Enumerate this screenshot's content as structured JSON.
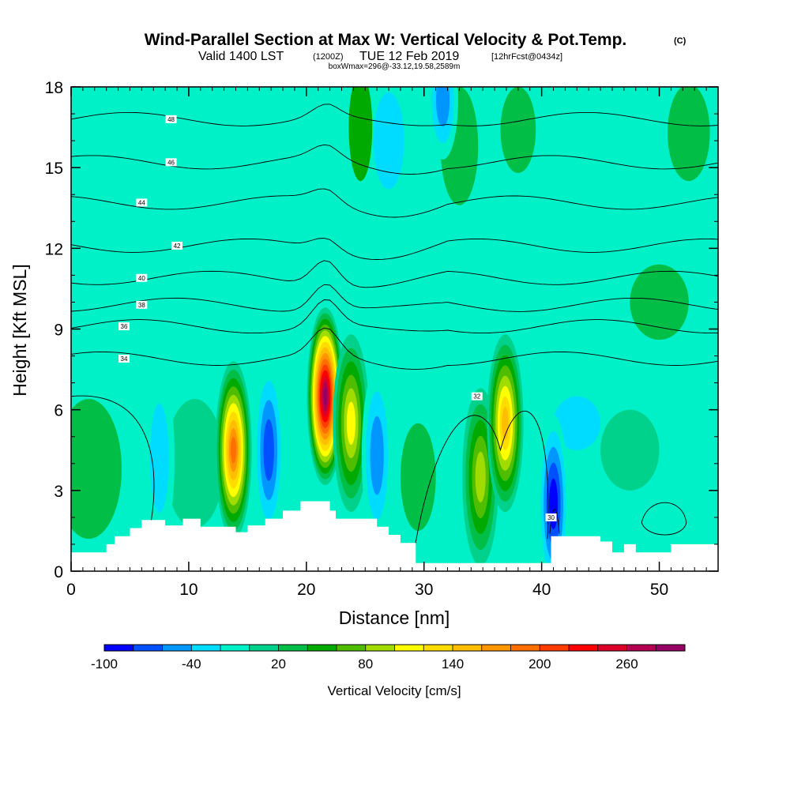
{
  "chart_data": {
    "type": "heatmap",
    "title": "Wind-Parallel Section at Max W: Vertical Velocity & Pot.Temp.",
    "title_mark": "(C)",
    "subtitle": {
      "valid": "Valid 1400 LST",
      "zulu": "(1200Z)",
      "date": "TUE 12 Feb 2019",
      "forecast": "[12hrFcst@0434z]"
    },
    "box_info": "boxWmax=296@-33.12,19.58,2589m",
    "xlabel": "Distance [nm]",
    "ylabel": "Height [Kft MSL]",
    "xlim": [
      0,
      55
    ],
    "ylim": [
      0,
      18
    ],
    "xticks": [
      0,
      10,
      20,
      30,
      40,
      50
    ],
    "xtick_labels": [
      "0",
      "10",
      "20",
      "30",
      "40",
      "50"
    ],
    "yticks": [
      0,
      3,
      6,
      9,
      12,
      15,
      18
    ],
    "ytick_labels": [
      "0",
      "3",
      "6",
      "9",
      "12",
      "15",
      "18"
    ],
    "colorbar": {
      "label": "Vertical Velocity [cm/s]",
      "levels": [
        -100,
        -80,
        -60,
        -40,
        -20,
        0,
        20,
        40,
        60,
        80,
        100,
        120,
        140,
        160,
        180,
        200,
        220,
        240,
        260,
        280,
        300
      ],
      "tick_values": [
        -100,
        -40,
        20,
        80,
        140,
        200,
        260
      ],
      "tick_labels": [
        "-100",
        "-40",
        "20",
        "80",
        "140",
        "200",
        "260"
      ],
      "colors": [
        "#0000ff",
        "#0050ff",
        "#0096ff",
        "#00dcff",
        "#00f0c8",
        "#00d28c",
        "#00be46",
        "#00aa00",
        "#50be00",
        "#a0dc00",
        "#ffff00",
        "#ffdc00",
        "#ffbe00",
        "#ff9600",
        "#ff6e00",
        "#ff3c00",
        "#ff0000",
        "#dc0028",
        "#b40050",
        "#960064"
      ]
    },
    "features": {
      "updrafts": [
        {
          "x": 13.8,
          "y": 4.5,
          "w_cm_s": 200
        },
        {
          "x": 21.6,
          "y": 6.5,
          "w_cm_s": 296
        },
        {
          "x": 23.8,
          "y": 5.5,
          "w_cm_s": 110
        },
        {
          "x": 34.8,
          "y": 3.5,
          "w_cm_s": 100
        },
        {
          "x": 36.9,
          "y": 5.5,
          "w_cm_s": 150
        }
      ],
      "downdrafts": [
        {
          "x": 16.8,
          "y": 4.5,
          "w_cm_s": -80
        },
        {
          "x": 7.5,
          "y": 4.2,
          "w_cm_s": -30
        },
        {
          "x": 26.0,
          "y": 4.3,
          "w_cm_s": -60
        },
        {
          "x": 41.0,
          "y": 2.5,
          "w_cm_s": -90
        },
        {
          "x": 31.6,
          "y": 17.5,
          "w_cm_s": -50
        }
      ],
      "theta_contours": [
        {
          "value": 48,
          "height_kft": 16.8,
          "label": "48"
        },
        {
          "value": 46,
          "height_kft": 15.2,
          "label": "46"
        },
        {
          "value": 44,
          "height_kft": 13.7,
          "label": "44"
        },
        {
          "value": 42,
          "height_kft": 12.1,
          "label": "42"
        },
        {
          "value": 40,
          "height_kft": 10.9,
          "label": "40"
        },
        {
          "value": 38,
          "height_kft": 9.9,
          "label": "38"
        },
        {
          "value": 36,
          "height_kft": 9.1,
          "label": "36"
        },
        {
          "value": 34,
          "height_kft": 7.9,
          "label": "34"
        },
        {
          "value": 32,
          "height_kft": 6.5,
          "label": "32"
        },
        {
          "value": 30,
          "height_kft": 2.0,
          "label": "30"
        }
      ]
    }
  }
}
